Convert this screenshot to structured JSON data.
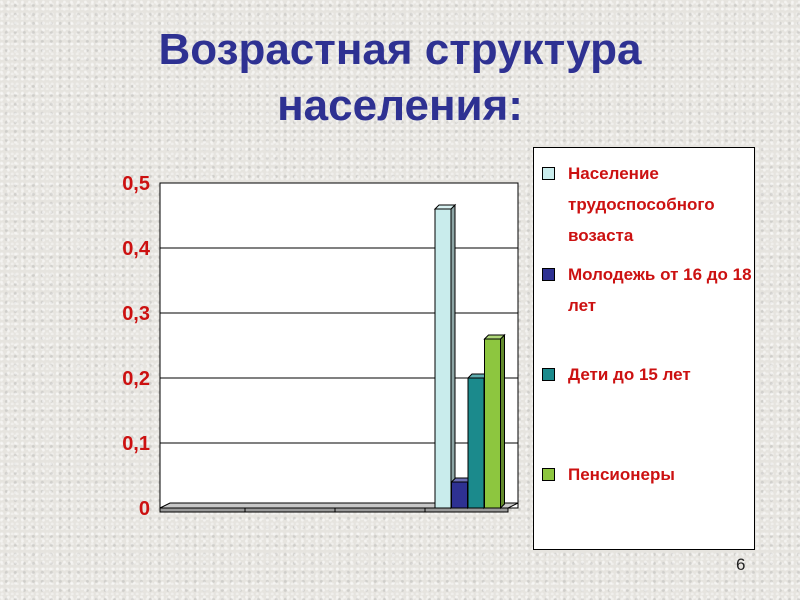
{
  "slide": {
    "title_line1": "Возрастная структура",
    "title_line2": "населения:",
    "page_number": "6"
  },
  "chart_data": {
    "type": "bar",
    "title": "Возрастная структура населения:",
    "ylim": [
      0,
      0.5
    ],
    "y_ticks": [
      "0",
      "0,1",
      "0,2",
      "0,3",
      "0,4",
      "0,5"
    ],
    "grid": true,
    "legend_position": "right",
    "series": [
      {
        "name": "Население трудоспособного возаста",
        "value": 0.46,
        "color": "#c9ecec"
      },
      {
        "name": "Молодежь от 16 до 18 лет",
        "value": 0.04,
        "color": "#2e3192"
      },
      {
        "name": "Дети до 15 лет",
        "value": 0.2,
        "color": "#1b8a8c"
      },
      {
        "name": "Пенсионеры",
        "value": 0.26,
        "color": "#8dc63f"
      }
    ]
  }
}
